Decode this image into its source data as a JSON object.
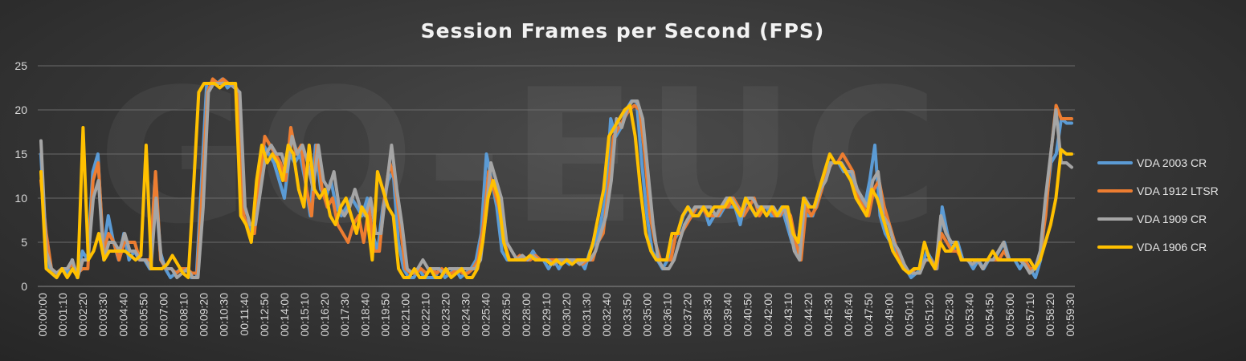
{
  "chart_data": {
    "type": "line",
    "title": "Session Frames per Second (FPS)",
    "xlabel": "",
    "ylabel": "",
    "ylim": [
      0,
      25
    ],
    "yticks": [
      0,
      5,
      10,
      15,
      20,
      25
    ],
    "grid": "horizontal",
    "legend_position": "right",
    "watermark": "GO-EUC",
    "x_tick_labels": [
      "00:00:00",
      "00:01:10",
      "00:02:20",
      "00:03:30",
      "00:04:40",
      "00:05:50",
      "00:07:00",
      "00:08:10",
      "00:09:20",
      "00:10:30",
      "00:11:40",
      "00:12:50",
      "00:14:00",
      "00:15:10",
      "00:16:20",
      "00:17:30",
      "00:18:40",
      "00:19:50",
      "00:21:00",
      "00:22:10",
      "00:23:20",
      "00:24:30",
      "00:25:40",
      "00:26:50",
      "00:28:00",
      "00:29:10",
      "00:30:20",
      "00:31:30",
      "00:32:40",
      "00:33:50",
      "00:35:00",
      "00:36:10",
      "00:37:20",
      "00:38:30",
      "00:39:40",
      "00:40:50",
      "00:42:00",
      "00:43:10",
      "00:44:20",
      "00:45:30",
      "00:46:40",
      "00:47:50",
      "00:49:00",
      "00:50:10",
      "00:51:20",
      "00:52:30",
      "00:53:40",
      "00:54:50",
      "00:56:00",
      "00:57:10",
      "00:58:20",
      "00:59:30"
    ],
    "series": [
      {
        "name": "VDA 2003 CR",
        "color": "#5b9bd5",
        "values": [
          15,
          3,
          1.5,
          1,
          2,
          1.5,
          3,
          1,
          4,
          3,
          13,
          15,
          4,
          8,
          5,
          3,
          6,
          3,
          4,
          3,
          3,
          2,
          12,
          4,
          2,
          1,
          1.5,
          2,
          2,
          1,
          1,
          12,
          23,
          23,
          23,
          23.5,
          22.5,
          23,
          22,
          8,
          7,
          6,
          13,
          16,
          15,
          14,
          12,
          10,
          15,
          14,
          15,
          12,
          8,
          16,
          11,
          10,
          12,
          9,
          8,
          9,
          10,
          9,
          8,
          10,
          6,
          4,
          9,
          12,
          13,
          5,
          2,
          1,
          1,
          2,
          1,
          1,
          1,
          2,
          1,
          1.5,
          2,
          1,
          1.5,
          2,
          3,
          6,
          15,
          12,
          9,
          4,
          3,
          3,
          3,
          3,
          3,
          4,
          3,
          3,
          2,
          3,
          2,
          3,
          2.5,
          3,
          3,
          2,
          4,
          5,
          7,
          10,
          19,
          17,
          18,
          20,
          21,
          21,
          14,
          8,
          4,
          3,
          2,
          3,
          5,
          6,
          8,
          9,
          8,
          8,
          9,
          7,
          8,
          8,
          9,
          9,
          9,
          7,
          10,
          9,
          8,
          9,
          9,
          8,
          8,
          9,
          7,
          5,
          4,
          9,
          8,
          8,
          10,
          12,
          14,
          14,
          14,
          13,
          13,
          11,
          10,
          9,
          12,
          16,
          8,
          6,
          5,
          4,
          3,
          2,
          1,
          1.5,
          2,
          4,
          3,
          2,
          9,
          6,
          4,
          5,
          3,
          3,
          2,
          3,
          2,
          3,
          3,
          4,
          5,
          3,
          3,
          2,
          3,
          2,
          1,
          3,
          9,
          14,
          15,
          19,
          18.5,
          18.5
        ]
      },
      {
        "name": "VDA 1912 LTSR",
        "color": "#ed7d31",
        "values": [
          12,
          6,
          2,
          1.5,
          2,
          2,
          2.5,
          1.5,
          2,
          2,
          12,
          14,
          4,
          6,
          5,
          3,
          5,
          5,
          5,
          3,
          3,
          3,
          13,
          3,
          2,
          2,
          1.5,
          2,
          2,
          1.5,
          1.5,
          11,
          22,
          23.5,
          23,
          23.5,
          23,
          23,
          22,
          8,
          6,
          6,
          12,
          17,
          16,
          15,
          14,
          12,
          18,
          15,
          16,
          11,
          8,
          16,
          11,
          9,
          10,
          7,
          6,
          5,
          7,
          8,
          5,
          9,
          4,
          4,
          10,
          14,
          12,
          7,
          2,
          1.5,
          1.5,
          2,
          1.5,
          2,
          1.5,
          2,
          1.5,
          1.5,
          2,
          1.5,
          1.5,
          2,
          3,
          7,
          13,
          11,
          9,
          5,
          3,
          3,
          3.5,
          3,
          3,
          3.5,
          3,
          3,
          3,
          3,
          3,
          3,
          3,
          3,
          2.5,
          3,
          3,
          5,
          6,
          11,
          17,
          18,
          19,
          20,
          20.5,
          20,
          15,
          8,
          5,
          3,
          3,
          3,
          6,
          6,
          7,
          8,
          9,
          9,
          8,
          8,
          8,
          9,
          9,
          10,
          9,
          8,
          9,
          10,
          8,
          9,
          9,
          8,
          8,
          9,
          8,
          5,
          3,
          9,
          8,
          9,
          11,
          13,
          14,
          14,
          15,
          14,
          13,
          10,
          9,
          8,
          11,
          12,
          9,
          7,
          5,
          3,
          2,
          1.5,
          2,
          2,
          3,
          3,
          2,
          6,
          5,
          4,
          4,
          3,
          3,
          3,
          3,
          3,
          3,
          3,
          3,
          4,
          3,
          3,
          3,
          3,
          2,
          2,
          4,
          8,
          15,
          20.5,
          19,
          19,
          19
        ]
      },
      {
        "name": "VDA 1909 CR",
        "color": "#a5a5a5",
        "values": [
          16.5,
          4,
          2,
          1.5,
          2,
          2,
          3,
          1,
          3,
          3,
          10,
          12,
          3,
          5,
          5,
          4,
          6,
          4,
          4,
          3,
          3,
          2,
          10,
          3,
          2,
          2,
          1,
          1.5,
          2,
          1,
          1,
          9,
          22,
          23,
          23,
          23,
          23,
          22.5,
          22,
          9,
          7,
          7,
          11,
          15,
          16,
          15,
          15,
          13,
          17,
          15,
          16,
          14,
          11,
          16,
          12,
          11,
          13,
          9,
          8,
          9,
          11,
          9,
          8,
          10,
          6,
          6,
          11,
          16,
          11,
          7,
          2,
          1.5,
          2,
          3,
          2,
          2,
          2,
          1.5,
          2,
          2,
          2,
          2,
          2,
          2,
          3,
          8,
          14,
          12,
          10,
          5,
          4,
          3,
          3.5,
          3,
          3.5,
          3,
          3,
          3,
          2.5,
          3,
          3,
          3,
          3,
          2.5,
          3,
          3,
          4,
          6,
          8,
          12,
          19,
          18,
          20,
          21,
          21,
          19,
          13,
          7,
          3,
          2,
          2,
          3,
          5,
          7,
          8,
          9,
          9,
          9,
          9,
          8,
          9,
          10,
          10,
          9,
          8,
          10,
          10,
          9,
          9,
          9,
          9,
          8,
          9,
          7,
          4,
          3,
          10,
          9,
          9,
          11,
          12,
          14,
          14,
          14,
          13,
          13,
          11,
          10,
          9,
          12,
          13,
          8,
          7,
          5,
          4,
          2.5,
          1.5,
          1.5,
          1.5,
          3,
          3,
          2,
          8,
          6,
          5,
          5,
          3,
          3,
          2.5,
          3,
          2,
          3,
          3,
          4,
          5,
          3,
          3,
          3,
          2.5,
          1.5,
          2,
          4,
          10,
          15,
          20,
          14,
          14,
          13.5
        ]
      },
      {
        "name": "VDA 1906 CR",
        "color": "#ffc000",
        "values": [
          13,
          2,
          1.5,
          1,
          2,
          1,
          2,
          1,
          18,
          3,
          4,
          6,
          3,
          4,
          4,
          4,
          4,
          3.5,
          3,
          3.5,
          16,
          2,
          2,
          2,
          2.5,
          3.5,
          2.5,
          1.5,
          1,
          11,
          22,
          23,
          23,
          23,
          22.5,
          23,
          23,
          23,
          8,
          7,
          5,
          12,
          16,
          14,
          15,
          14,
          12,
          16,
          15,
          11,
          9,
          16,
          11,
          10,
          11,
          8,
          7,
          9,
          10,
          8,
          6,
          9,
          8,
          3,
          13,
          11,
          9,
          8,
          2,
          1,
          1,
          2,
          1,
          1,
          2,
          1,
          1,
          2,
          1,
          1.5,
          2,
          1,
          1,
          2,
          5,
          10,
          12,
          10,
          5,
          3,
          3,
          3,
          3,
          3.5,
          3,
          3,
          3,
          2.5,
          3,
          2.5,
          3,
          2.5,
          3,
          3,
          3,
          5,
          8,
          11,
          17,
          18,
          19,
          20,
          20.5,
          17,
          11,
          6,
          4,
          3,
          3,
          3,
          6,
          6,
          8,
          9,
          8,
          8,
          9,
          8,
          9,
          9,
          9,
          10,
          9,
          8,
          10,
          9,
          8,
          9,
          8,
          9,
          8,
          9,
          9,
          6,
          5,
          10,
          9,
          9,
          11,
          13,
          15,
          14,
          14,
          13,
          12,
          10,
          9,
          8,
          11,
          10,
          8,
          6,
          4,
          3,
          2,
          1.5,
          2,
          2,
          5,
          3,
          2,
          5,
          4,
          4,
          5,
          3,
          3,
          3,
          3,
          3,
          3,
          4,
          3,
          3,
          3,
          3,
          3,
          3,
          3,
          2,
          3,
          5,
          7,
          10,
          15.5,
          15,
          15
        ]
      }
    ]
  }
}
